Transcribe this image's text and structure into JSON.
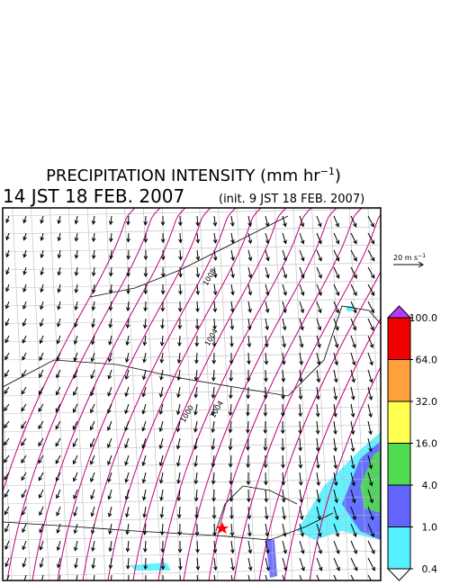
{
  "header": {
    "title": "PRECIPITATION INTENSITY (mm hr",
    "title_exponent": "−1",
    "title_close": ")",
    "valid_time": "14 JST 18 FEB. 2007",
    "init_time": "(init. 9 JST 18 FEB. 2007)"
  },
  "wind_scale": {
    "label": "20 m s",
    "exponent": "−1"
  },
  "map": {
    "isobar_labels": [
      "1008",
      "1004",
      "1004",
      "1000"
    ]
  },
  "colorbar": {
    "levels": [
      0.4,
      {
        "value": 1,
        "label": "1.0"
      },
      {
        "value": 4,
        "label": "4.0"
      },
      {
        "value": 16,
        "label": "16.0"
      },
      {
        "value": 32,
        "label": "32.0"
      },
      {
        "value": 64,
        "label": "64.0"
      },
      {
        "value": 100,
        "label": "100.0"
      }
    ],
    "colors": [
      "#55f0ff",
      "#6464ff",
      "#50dc50",
      "#ffff50",
      "#ffa03c",
      "#f00000"
    ],
    "under_color": "#ffffff",
    "over_color": "#b43cff"
  }
}
